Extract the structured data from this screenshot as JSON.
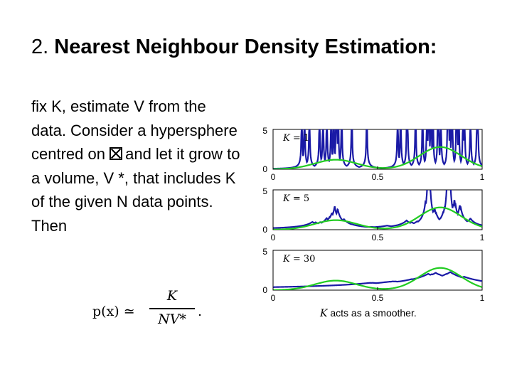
{
  "slide": {
    "title_number": "2.",
    "title_bold": "Nearest Neighbour Density Estimation:",
    "paragraph_line1": "fix K, estimate V from the data. Consider a hypersphere centred on",
    "paragraph_line2": "and let it grow to a volume, V *, that includes K of the given N data points. Then",
    "formula": {
      "lhs": "p(x) ≃",
      "numerator": "K",
      "denominator": "NV*",
      "trailing": "."
    },
    "caption_symbol": "K",
    "caption_text": "acts as a smoother."
  },
  "chart_data": {
    "type": "line",
    "panels": [
      {
        "label": "K = 1",
        "label_symbol": "K",
        "label_value": "1"
      },
      {
        "label": "K = 5",
        "label_symbol": "K",
        "label_value": "5"
      },
      {
        "label": "K = 30",
        "label_symbol": "K",
        "label_value": "30"
      }
    ],
    "y_ticks": [
      "0",
      "5"
    ],
    "x_ticks": [
      "0",
      "0.5",
      "1"
    ],
    "xlim": [
      0,
      1
    ],
    "ylim": [
      0,
      5
    ],
    "colors": {
      "true_density": "#22cc22",
      "estimate": "#1a1aa6"
    }
  }
}
